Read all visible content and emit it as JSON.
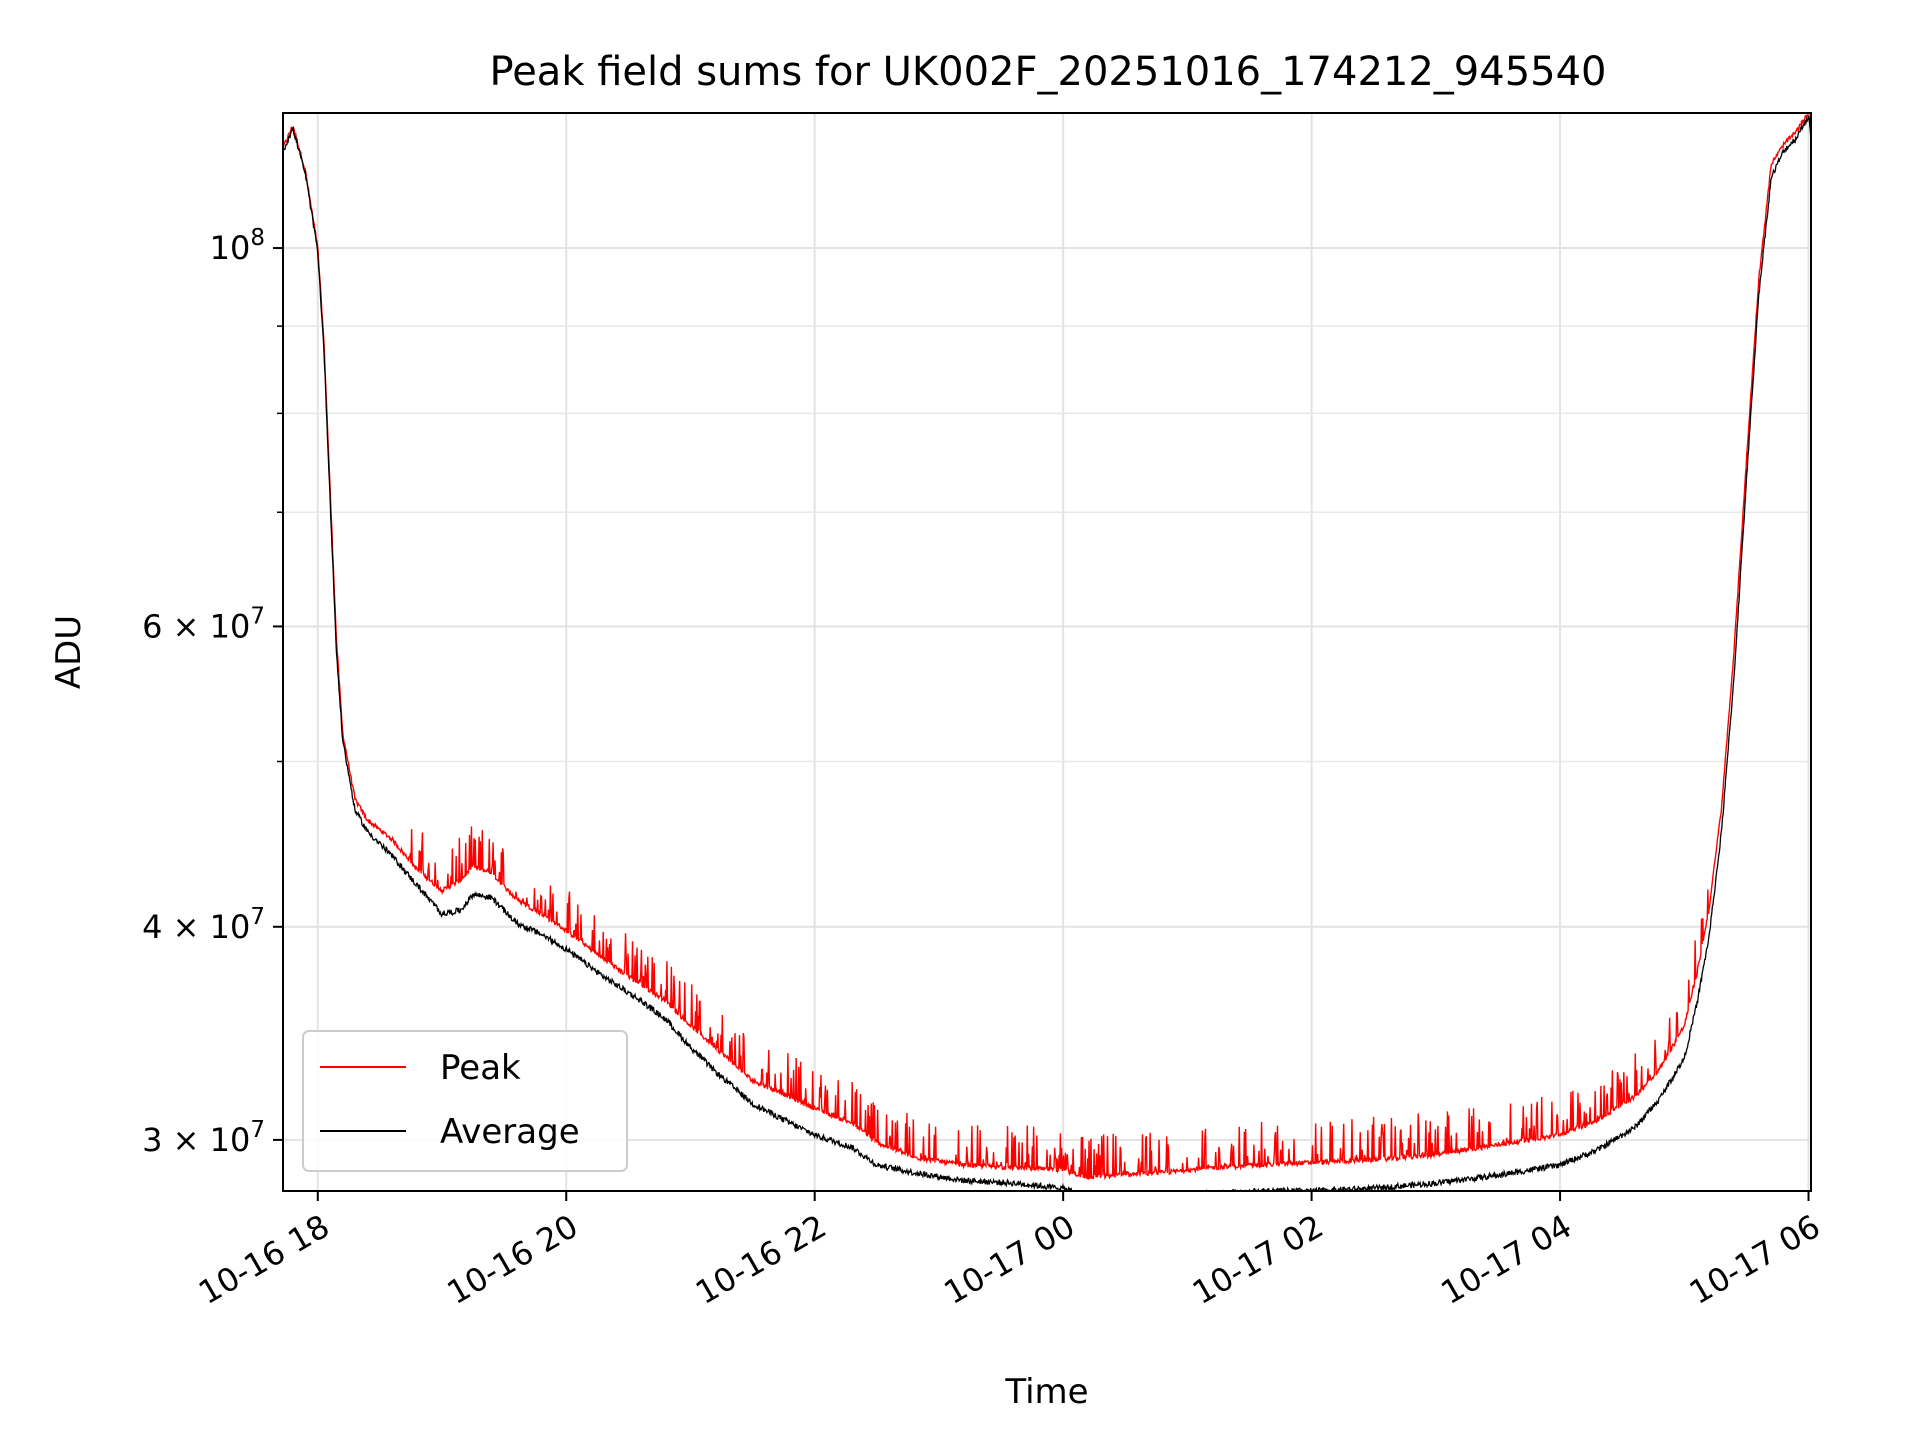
{
  "chart_data": {
    "type": "line",
    "title": "Peak field sums for UK002F_20251016_174212_945540",
    "xlabel": "Time",
    "ylabel": "ADU",
    "yscale": "log",
    "grid": true,
    "legend_position": "lower-left",
    "x_unit": "hours since 2025-10-16 00:00",
    "xlim": [
      17.72,
      30.02
    ],
    "ylim": [
      28000000,
      120000000
    ],
    "x_ticks": [
      {
        "value": 18,
        "label": "10-16 18"
      },
      {
        "value": 20,
        "label": "10-16 20"
      },
      {
        "value": 22,
        "label": "10-16 22"
      },
      {
        "value": 24,
        "label": "10-17 00"
      },
      {
        "value": 26,
        "label": "10-17 02"
      },
      {
        "value": 28,
        "label": "10-17 04"
      },
      {
        "value": 30,
        "label": "10-17 06"
      }
    ],
    "y_ticks": [
      {
        "value": 100000000,
        "label_base": "10",
        "label_exp": "8"
      },
      {
        "value": 60000000,
        "label_base": "6 × 10",
        "label_exp": "7"
      },
      {
        "value": 40000000,
        "label_base": "4 × 10",
        "label_exp": "7"
      },
      {
        "value": 30000000,
        "label_base": "3 × 10",
        "label_exp": "7"
      }
    ],
    "y_minor_ticks": [
      50000000,
      70000000,
      80000000,
      90000000
    ],
    "series": [
      {
        "name": "Peak",
        "color": "#ff0000",
        "x": [
          17.72,
          17.8,
          17.9,
          18.0,
          18.05,
          18.1,
          18.15,
          18.2,
          18.3,
          18.4,
          18.6,
          18.8,
          19.0,
          19.15,
          19.25,
          19.4,
          19.6,
          19.8,
          20.0,
          20.3,
          20.6,
          20.8,
          21.0,
          21.2,
          21.5,
          21.8,
          22.0,
          22.3,
          22.5,
          22.8,
          23.2,
          23.6,
          24.0,
          24.2,
          24.4,
          24.8,
          25.2,
          25.6,
          26.0,
          26.5,
          27.0,
          27.5,
          28.0,
          28.3,
          28.6,
          28.8,
          29.0,
          29.1,
          29.2,
          29.3,
          29.4,
          29.5,
          29.6,
          29.7,
          29.8,
          29.9,
          30.0,
          30.02
        ],
        "y": [
          114500000,
          118000000,
          111000000,
          100000000,
          88000000,
          72000000,
          59000000,
          52000000,
          47500000,
          46200000,
          45000000,
          43200000,
          42000000,
          42600000,
          43400000,
          43000000,
          41500000,
          40700000,
          39800000,
          38300000,
          37000000,
          36200000,
          35000000,
          34000000,
          32500000,
          31800000,
          31300000,
          30700000,
          29900000,
          29300000,
          29000000,
          28900000,
          28800000,
          28500000,
          28600000,
          28700000,
          28900000,
          29000000,
          29100000,
          29200000,
          29400000,
          29800000,
          30200000,
          30800000,
          31800000,
          33000000,
          35000000,
          37500000,
          41000000,
          47000000,
          58000000,
          75000000,
          96000000,
          112000000,
          115000000,
          117000000,
          120000000,
          117000000
        ]
      },
      {
        "name": "Average",
        "color": "#000000",
        "x": [
          17.72,
          17.8,
          17.9,
          18.0,
          18.05,
          18.1,
          18.15,
          18.2,
          18.3,
          18.4,
          18.6,
          18.8,
          19.0,
          19.15,
          19.25,
          19.4,
          19.6,
          19.8,
          20.0,
          20.3,
          20.6,
          20.8,
          21.0,
          21.2,
          21.5,
          21.8,
          22.0,
          22.3,
          22.5,
          22.8,
          23.2,
          23.6,
          24.0,
          24.2,
          24.4,
          24.8,
          25.2,
          25.6,
          26.0,
          26.5,
          27.0,
          27.5,
          28.0,
          28.3,
          28.6,
          28.8,
          29.0,
          29.1,
          29.2,
          29.3,
          29.4,
          29.5,
          29.6,
          29.7,
          29.8,
          29.9,
          30.0,
          30.02
        ],
        "y": [
          114000000,
          117500000,
          110500000,
          99500000,
          87000000,
          71000000,
          58000000,
          51500000,
          46800000,
          45500000,
          44000000,
          42300000,
          40700000,
          40900000,
          41800000,
          41600000,
          40200000,
          39600000,
          38800000,
          37400000,
          36200000,
          35300000,
          34000000,
          32900000,
          31500000,
          30700000,
          30200000,
          29700000,
          29000000,
          28700000,
          28400000,
          28300000,
          28100000,
          27800000,
          27700000,
          27800000,
          27900000,
          28000000,
          28000000,
          28100000,
          28300000,
          28600000,
          29000000,
          29600000,
          30500000,
          31700000,
          33500000,
          36000000,
          39500000,
          45500000,
          56000000,
          73000000,
          94000000,
          110000000,
          114000000,
          116000000,
          119500000,
          116000000
        ]
      }
    ]
  }
}
